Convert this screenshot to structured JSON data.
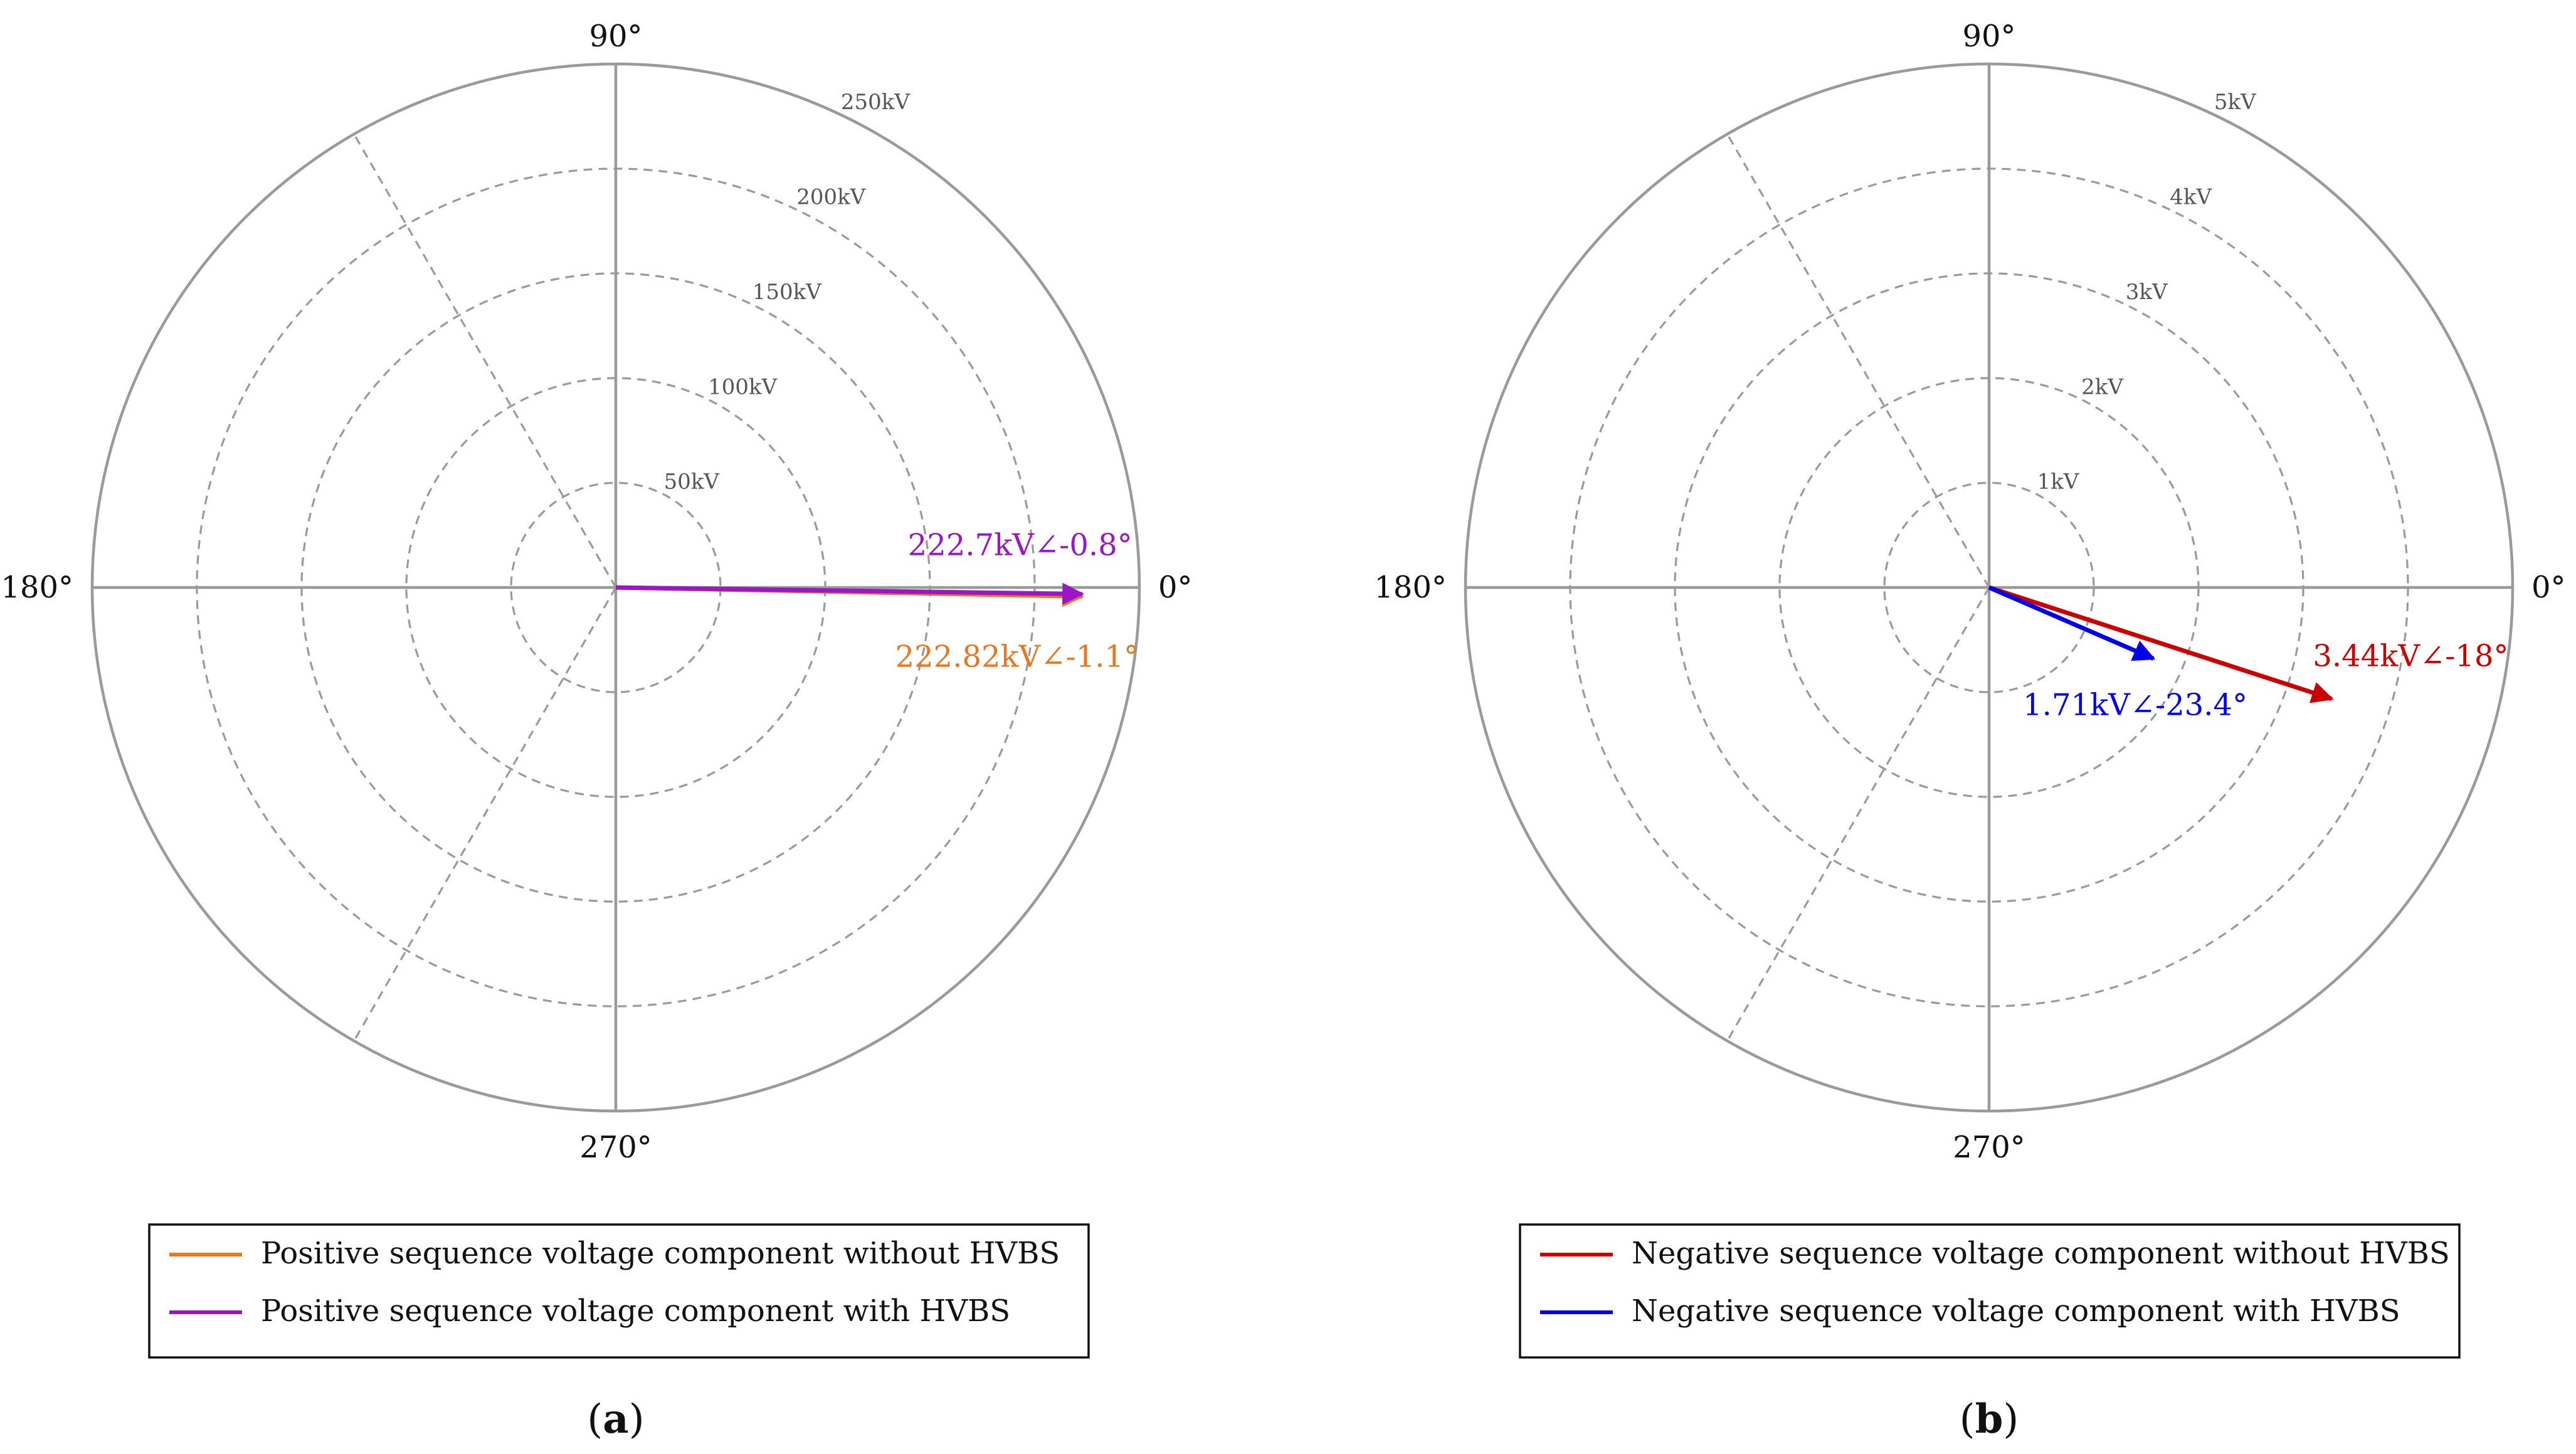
{
  "chart_data": [
    {
      "type": "polar",
      "id": "a",
      "caption_letter": "a",
      "radial_axis": {
        "unit": "kV",
        "max": 250,
        "ticks": [
          50,
          100,
          150,
          200,
          250
        ],
        "tick_labels": [
          "50kV",
          "100kV",
          "150kV",
          "200kV",
          "250kV"
        ],
        "gridline_style": "dashed",
        "tick_angle_deg": 65
      },
      "angle_axis": {
        "tick_labels": [
          "0°",
          "90°",
          "180°",
          "270°"
        ],
        "dashed_spokes_deg": [
          120,
          240
        ]
      },
      "series": [
        {
          "name": "Positive sequence voltage component without HVBS",
          "magnitude": 222.82,
          "angle_deg": -1.1,
          "color": "#E87722",
          "label": "222.82kV∠-1.1°",
          "label_position": "below"
        },
        {
          "name": "Positive sequence voltage component with HVBS",
          "magnitude": 222.7,
          "angle_deg": -0.8,
          "color": "#9B16C4",
          "label": "222.7kV∠-0.8°",
          "label_position": "above"
        }
      ],
      "legend": {
        "placement": "bottom"
      }
    },
    {
      "type": "polar",
      "id": "b",
      "caption_letter": "b",
      "radial_axis": {
        "unit": "kV",
        "max": 5,
        "ticks": [
          1,
          2,
          3,
          4,
          5
        ],
        "tick_labels": [
          "1kV",
          "2kV",
          "3kV",
          "4kV",
          "5kV"
        ],
        "gridline_style": "dashed",
        "tick_angle_deg": 65
      },
      "angle_axis": {
        "tick_labels": [
          "0°",
          "90°",
          "180°",
          "270°"
        ],
        "dashed_spokes_deg": [
          120,
          240
        ]
      },
      "series": [
        {
          "name": "Negative sequence voltage component without HVBS",
          "magnitude": 3.44,
          "angle_deg": -18,
          "color": "#CC0000",
          "label": "3.44kV∠-18°",
          "label_position": "right"
        },
        {
          "name": "Negative sequence voltage component with HVBS",
          "magnitude": 1.71,
          "angle_deg": -23.4,
          "color": "#0000EE",
          "label": "1.71kV∠-23.4°",
          "label_position": "below"
        }
      ],
      "legend": {
        "placement": "bottom"
      }
    }
  ]
}
